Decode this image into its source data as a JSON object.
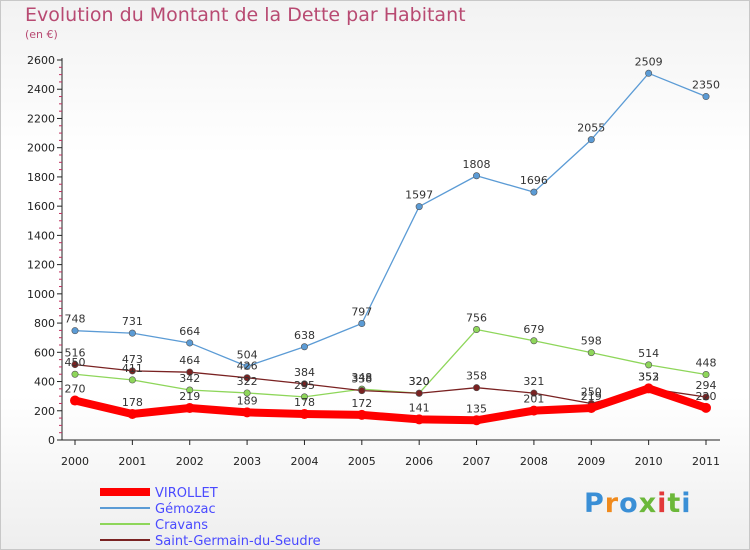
{
  "title": "Evolution du Montant de la Dette par Habitant",
  "subtitle": "(en €)",
  "logo_text": "Proxiti",
  "chart_data": {
    "type": "line",
    "title": "Evolution du Montant de la Dette par Habitant",
    "subtitle": "(en €)",
    "x": [
      "2000",
      "2001",
      "2002",
      "2003",
      "2004",
      "2005",
      "2006",
      "2007",
      "2008",
      "2009",
      "2010",
      "2011"
    ],
    "yticks": [
      "0",
      "200",
      "400",
      "600",
      "800",
      "1000",
      "1200",
      "1400",
      "1600",
      "1800",
      "2000",
      "2200",
      "2400",
      "2600"
    ],
    "ylim": [
      0,
      2600
    ],
    "grid": false,
    "legend_position": "bottom-left",
    "series": [
      {
        "name": "Gémozac",
        "color": "#5b9bd5",
        "values": [
          748,
          731,
          664,
          504,
          638,
          797,
          1597,
          1808,
          1696,
          2055,
          2509,
          2350
        ],
        "labels": [
          "748",
          "731",
          "664",
          "504",
          "638",
          "797",
          "1597",
          "1808",
          "1696",
          "2055",
          "2509",
          "2350"
        ]
      },
      {
        "name": "Cravans",
        "color": "#8ed65a",
        "values": [
          450,
          411,
          342,
          322,
          295,
          348,
          320,
          756,
          679,
          598,
          514,
          448
        ],
        "labels": [
          "450",
          "411",
          "342",
          "322",
          "295",
          "348",
          "320",
          "756",
          "679",
          "598",
          "514",
          "448"
        ]
      },
      {
        "name": "Saint-Germain-du-Seudre",
        "color": "#7a2222",
        "values": [
          516,
          473,
          464,
          426,
          384,
          338,
          320,
          358,
          321,
          250,
          352,
          294
        ],
        "labels": [
          "516",
          "473",
          "464",
          "426",
          "384",
          "338",
          "320",
          "358",
          "321",
          "250",
          "352",
          "294"
        ]
      },
      {
        "name": "VIROLLET",
        "color": "#ff0000",
        "values": [
          270,
          178,
          219,
          189,
          178,
          172,
          141,
          135,
          201,
          219,
          353,
          220
        ],
        "labels": [
          "270",
          "178",
          "219",
          "189",
          "178",
          "172",
          "141",
          "135",
          "201",
          "219",
          "353",
          "220"
        ]
      }
    ]
  }
}
